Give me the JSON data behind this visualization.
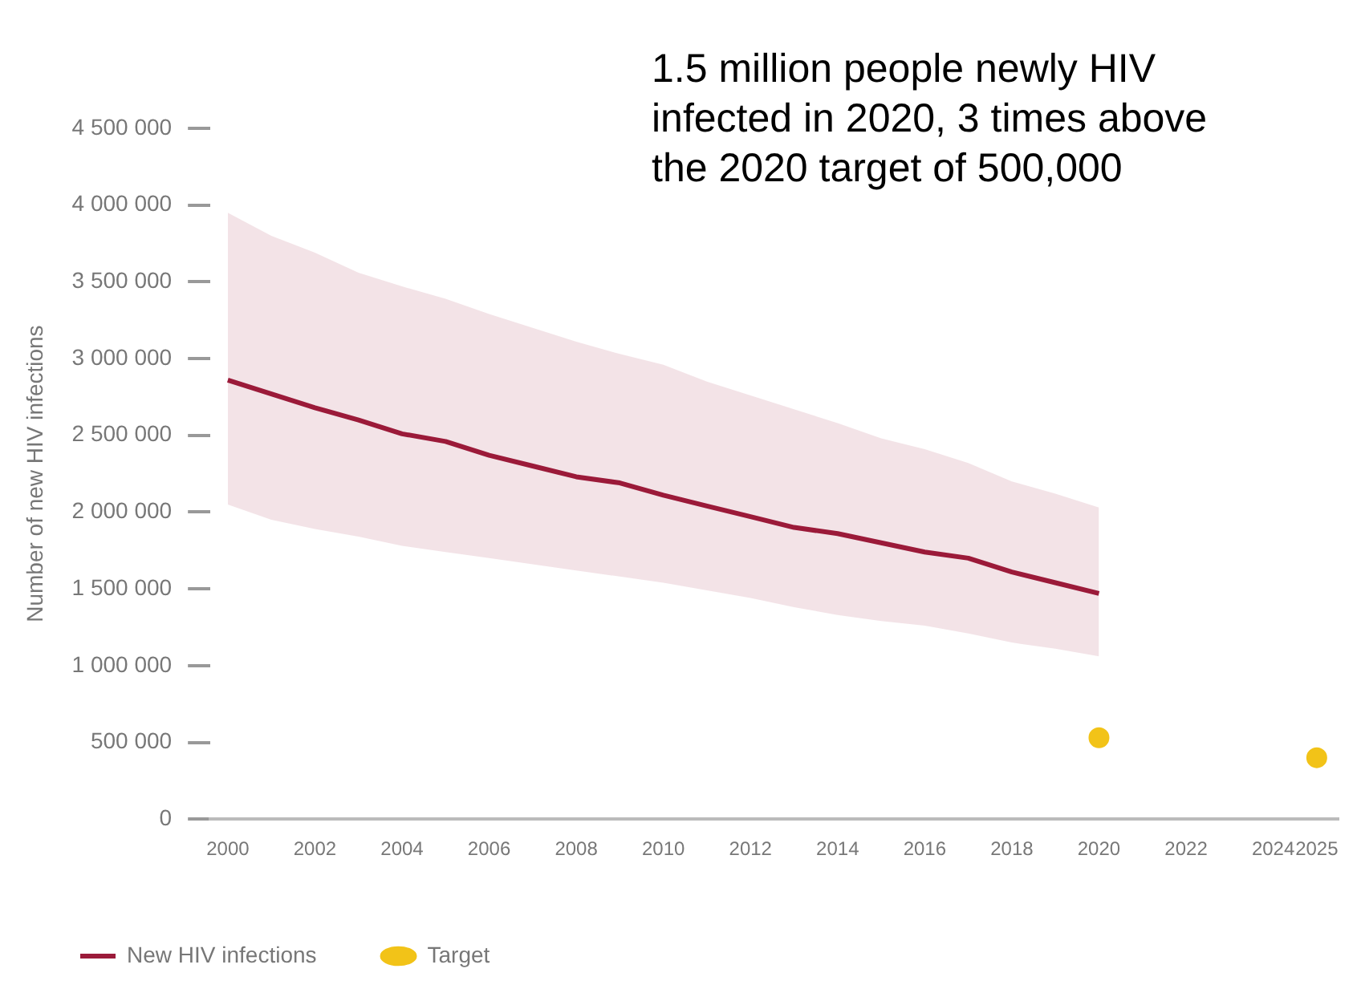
{
  "chart_data": {
    "type": "line",
    "annotations": [
      "1.5 million people newly HIV infected in 2020, 3 times above the 2020 target of 500,000"
    ],
    "ylabel": "Number of new HIV infections",
    "x": [
      2000,
      2001,
      2002,
      2003,
      2004,
      2005,
      2006,
      2007,
      2008,
      2009,
      2010,
      2011,
      2012,
      2013,
      2014,
      2015,
      2016,
      2017,
      2018,
      2019,
      2020
    ],
    "series": [
      {
        "name": "New HIV infections",
        "color": "#9b1b3a",
        "values": [
          2860000,
          2770000,
          2680000,
          2600000,
          2510000,
          2460000,
          2370000,
          2300000,
          2230000,
          2190000,
          2110000,
          2040000,
          1970000,
          1900000,
          1860000,
          1800000,
          1740000,
          1700000,
          1610000,
          1540000,
          1470000
        ],
        "lower": [
          2050000,
          1950000,
          1890000,
          1840000,
          1780000,
          1740000,
          1700000,
          1660000,
          1620000,
          1580000,
          1540000,
          1490000,
          1440000,
          1380000,
          1330000,
          1290000,
          1260000,
          1210000,
          1150000,
          1110000,
          1060000
        ],
        "upper": [
          3950000,
          3800000,
          3690000,
          3560000,
          3470000,
          3390000,
          3290000,
          3200000,
          3110000,
          3030000,
          2960000,
          2850000,
          2760000,
          2670000,
          2580000,
          2480000,
          2410000,
          2320000,
          2200000,
          2120000,
          2030000
        ]
      },
      {
        "name": "Target",
        "type": "scatter",
        "color": "#f2c318",
        "marker": "circle",
        "x": [
          2020,
          2025
        ],
        "values": [
          530000,
          400000
        ]
      }
    ],
    "xlim": [
      1999.6,
      2025.5
    ],
    "xticks": [
      2000,
      2002,
      2004,
      2006,
      2008,
      2010,
      2012,
      2014,
      2016,
      2018,
      2020,
      2022,
      2024,
      2025
    ],
    "ylim": [
      0,
      4500000
    ],
    "yticks": [
      {
        "value": 0,
        "label": "0"
      },
      {
        "value": 500000,
        "label": "500 000"
      },
      {
        "value": 1000000,
        "label": "1 000 000"
      },
      {
        "value": 1500000,
        "label": "1 500 000"
      },
      {
        "value": 2000000,
        "label": "2 000 000"
      },
      {
        "value": 2500000,
        "label": "2 500 000"
      },
      {
        "value": 3000000,
        "label": "3 000 000"
      },
      {
        "value": 3500000,
        "label": "3 500 000"
      },
      {
        "value": 4000000,
        "label": "4 000 000"
      },
      {
        "value": 4500000,
        "label": "4 500 000"
      }
    ],
    "grid": false,
    "legend": "bottom left",
    "line_style": "solid"
  }
}
